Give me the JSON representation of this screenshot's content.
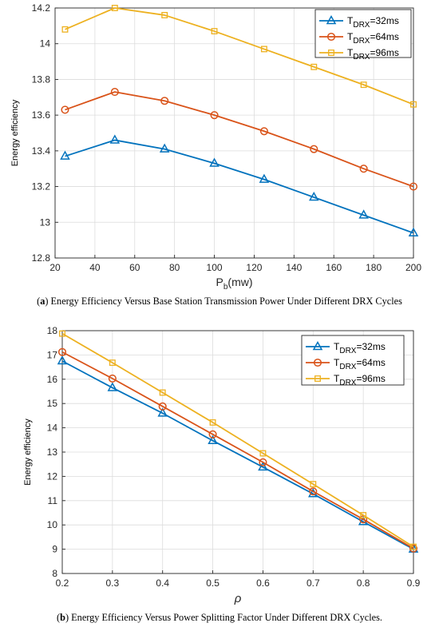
{
  "colors": {
    "blue": "#0072BD",
    "red": "#D95319",
    "yellow": "#EDB120"
  },
  "chart_data": [
    {
      "type": "line",
      "panel_label": "a",
      "caption": "Energy Efficiency Versus Base Station Transmission Power Under Different DRX Cycles",
      "xlabel": "P",
      "xlabel_sub": "b",
      "xlabel_unit": "(mw)",
      "ylabel": "Energy efficiency",
      "xlim": [
        20,
        200
      ],
      "ylim": [
        12.8,
        14.2
      ],
      "xticks": [
        20,
        40,
        60,
        80,
        100,
        120,
        140,
        160,
        180,
        200
      ],
      "yticks": [
        12.8,
        13,
        13.2,
        13.4,
        13.6,
        13.8,
        14,
        14.2
      ],
      "ytick_labels": [
        "12.8",
        "13",
        "13.2",
        "13.4",
        "13.6",
        "13.8",
        "14",
        "14.2"
      ],
      "grid": true,
      "legend_position": "top-right",
      "x": [
        25,
        50,
        75,
        100,
        125,
        150,
        175,
        200
      ],
      "series": [
        {
          "name_main": "T",
          "name_sub": "DRX",
          "name_rest": "=32ms",
          "color": "#0072BD",
          "marker": "triangle",
          "values": [
            13.37,
            13.46,
            13.41,
            13.33,
            13.24,
            13.14,
            13.04,
            12.94
          ]
        },
        {
          "name_main": "T",
          "name_sub": "DRX",
          "name_rest": "=64ms",
          "color": "#D95319",
          "marker": "circle",
          "values": [
            13.63,
            13.73,
            13.68,
            13.6,
            13.51,
            13.41,
            13.3,
            13.2
          ]
        },
        {
          "name_main": "T",
          "name_sub": "DRX",
          "name_rest": "=96ms",
          "color": "#EDB120",
          "marker": "square",
          "values": [
            14.08,
            14.2,
            14.16,
            14.07,
            13.97,
            13.87,
            13.77,
            13.66
          ]
        }
      ]
    },
    {
      "type": "line",
      "panel_label": "b",
      "caption": "Energy Efficiency Versus Power Splitting Factor Under Different DRX Cycles.",
      "xlabel": "ρ",
      "ylabel": "Energy efficiency",
      "xlim": [
        0.2,
        0.9
      ],
      "ylim": [
        8,
        18
      ],
      "xticks": [
        0.2,
        0.3,
        0.4,
        0.5,
        0.6,
        0.7,
        0.8,
        0.9
      ],
      "yticks": [
        8,
        9,
        10,
        11,
        12,
        13,
        14,
        15,
        16,
        17,
        18
      ],
      "ytick_labels": [
        "8",
        "9",
        "10",
        "11",
        "12",
        "13",
        "14",
        "15",
        "16",
        "17",
        "18"
      ],
      "grid": true,
      "legend_position": "top-right",
      "x": [
        0.2,
        0.3,
        0.4,
        0.5,
        0.6,
        0.7,
        0.8,
        0.9
      ],
      "series": [
        {
          "name_main": "T",
          "name_sub": "DRX",
          "name_rest": "=32ms",
          "color": "#0072BD",
          "marker": "triangle",
          "values": [
            16.75,
            15.65,
            14.6,
            13.47,
            12.38,
            11.28,
            10.13,
            9.0
          ]
        },
        {
          "name_main": "T",
          "name_sub": "DRX",
          "name_rest": "=64ms",
          "color": "#D95319",
          "marker": "circle",
          "values": [
            17.12,
            16.03,
            14.88,
            13.73,
            12.58,
            11.38,
            10.23,
            9.03
          ]
        },
        {
          "name_main": "T",
          "name_sub": "DRX",
          "name_rest": "=96ms",
          "color": "#EDB120",
          "marker": "square",
          "values": [
            17.88,
            16.68,
            15.45,
            14.22,
            12.95,
            11.68,
            10.4,
            9.1
          ]
        }
      ]
    }
  ]
}
